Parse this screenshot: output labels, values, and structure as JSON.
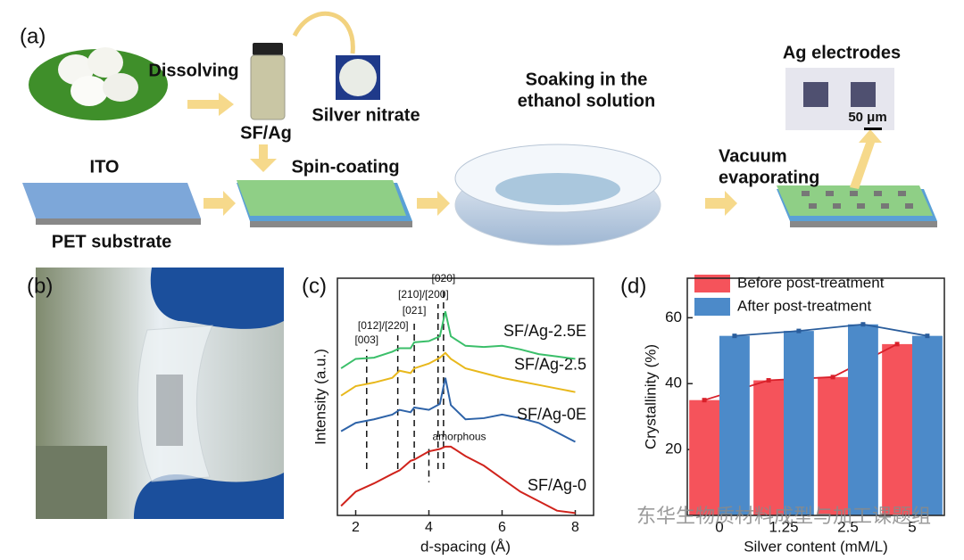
{
  "panel_a": {
    "label": "(a)",
    "dissolving": "Dissolving",
    "vial": "SF/Ag",
    "silver_nitrate": "Silver nitrate",
    "spin_coating": "Spin-coating",
    "ito": "ITO",
    "pet_substrate": "PET substrate",
    "soaking_line1": "Soaking in the",
    "soaking_line2": "ethanol solution",
    "vacuum_line1": "Vacuum",
    "vacuum_line2": "evaporating",
    "ag_electrodes": "Ag electrodes",
    "scale_bar": "50 μm"
  },
  "panel_b": {
    "label": "(b)"
  },
  "chart_data": [
    {
      "type": "line",
      "panel_label": "(c)",
      "x_label": "d-spacing (Å)",
      "y_label": "Intensity (a.u.)",
      "xlim": [
        1.5,
        8.5
      ],
      "xticks": [
        2,
        4,
        6,
        8
      ],
      "ylim": [
        0,
        10
      ],
      "x": [
        1.6,
        2,
        2.5,
        3,
        3.2,
        3.5,
        3.6,
        4,
        4.3,
        4.45,
        4.6,
        5,
        5.5,
        6,
        6.5,
        7,
        7.5,
        8
      ],
      "series": [
        {
          "name": "SF/Ag-0",
          "color": "#d0231c",
          "values": [
            0.4,
            1.0,
            1.35,
            1.75,
            1.9,
            2.3,
            2.35,
            2.7,
            2.8,
            2.9,
            2.9,
            2.5,
            2.1,
            1.55,
            1.0,
            0.6,
            0.2,
            0.1
          ]
        },
        {
          "name": "SF/Ag-0E",
          "color": "#2e63a8",
          "values": [
            3.55,
            3.9,
            4.05,
            4.25,
            4.45,
            4.35,
            4.55,
            4.45,
            4.7,
            5.8,
            4.65,
            4.05,
            4.1,
            4.25,
            4.1,
            3.9,
            3.5,
            3.1
          ]
        },
        {
          "name": "SF/Ag-2.5",
          "color": "#e8b81c",
          "values": [
            5.05,
            5.45,
            5.6,
            5.8,
            6.1,
            6.0,
            6.2,
            6.4,
            6.65,
            6.85,
            6.6,
            6.2,
            6.0,
            5.8,
            5.65,
            5.5,
            5.35,
            5.2
          ]
        },
        {
          "name": "SF/Ag-2.5E",
          "color": "#3bbf6a",
          "values": [
            6.2,
            6.6,
            6.65,
            6.9,
            7.05,
            7.05,
            7.3,
            7.35,
            7.55,
            8.6,
            7.55,
            7.15,
            7.1,
            7.15,
            7.0,
            6.8,
            6.7,
            6.6
          ]
        }
      ],
      "peak_labels": [
        {
          "text": "[003]",
          "x": 2.3
        },
        {
          "text": "[012]/[220]",
          "x": 3.15
        },
        {
          "text": "[021]",
          "x": 3.6
        },
        {
          "text": "[210]/[200]",
          "x": 4.25
        },
        {
          "text": "[020]",
          "x": 4.4
        }
      ],
      "amorphous_label": {
        "text": "amorphous",
        "x": 4.0
      }
    },
    {
      "type": "bar",
      "panel_label": "(d)",
      "x_label": "Silver content (mM/L)",
      "y_label": "Crystallinity (%)",
      "categories": [
        "0",
        "1.25",
        "2.5",
        "5"
      ],
      "ylim": [
        0,
        72
      ],
      "yticks": [
        20,
        40,
        60
      ],
      "series": [
        {
          "name": "Before post-treatment",
          "color": "#f5535b",
          "line_color": "#d9202a",
          "values": [
            35,
            41,
            42,
            52
          ]
        },
        {
          "name": "After post-treatment",
          "color": "#4c8ac9",
          "line_color": "#2a5d9c",
          "values": [
            54.5,
            56,
            58,
            54.5
          ]
        }
      ]
    }
  ],
  "watermark": "东华生物质材料成型与加工课题组"
}
